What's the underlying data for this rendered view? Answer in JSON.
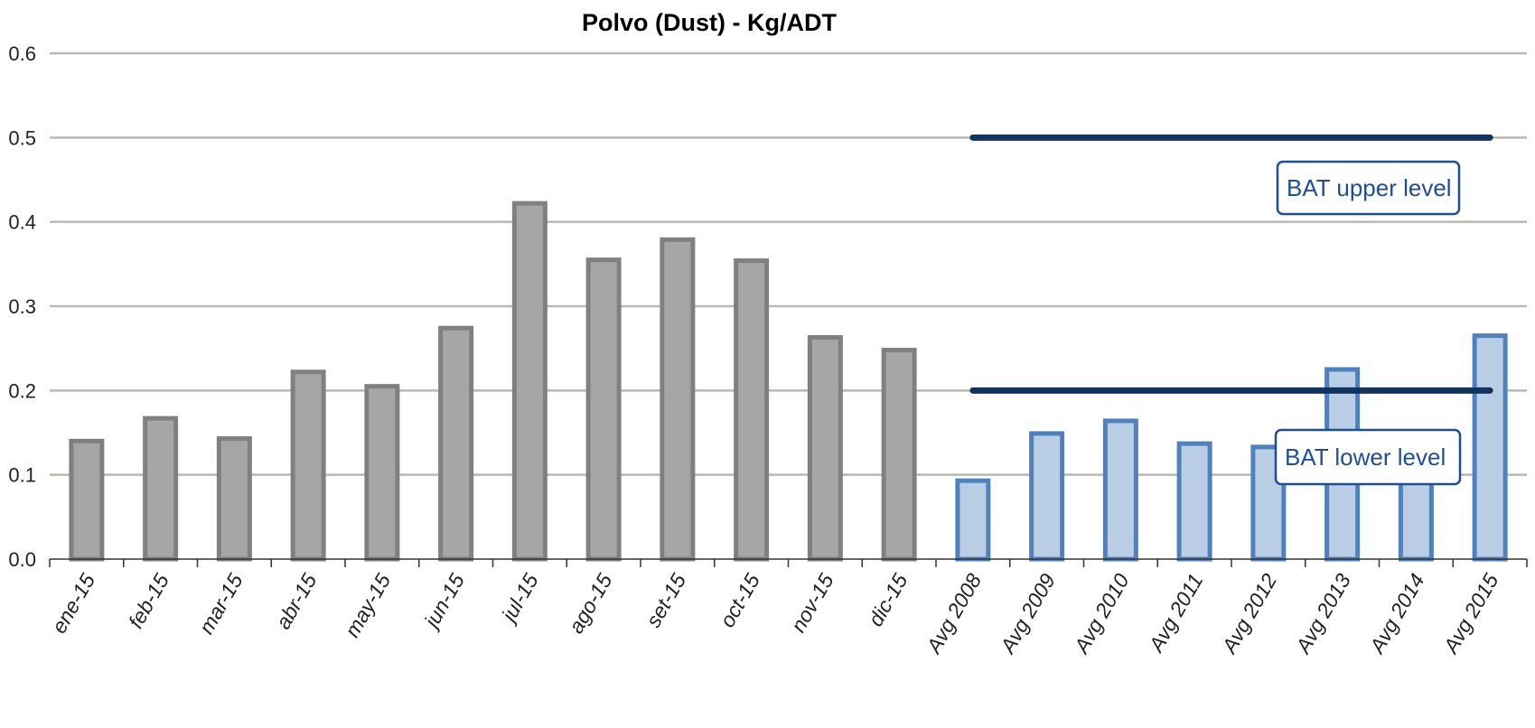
{
  "chart_data": {
    "type": "bar",
    "title": "Polvo (Dust) - Kg/ADT",
    "xlabel": "",
    "ylabel": "",
    "ylim": [
      0,
      0.6
    ],
    "yticks": [
      "0.0",
      "0.1",
      "0.2",
      "0.3",
      "0.4",
      "0.5",
      "0.6"
    ],
    "grid": true,
    "categories": [
      "ene-15",
      "feb-15",
      "mar-15",
      "abr-15",
      "may-15",
      "jun-15",
      "jul-15",
      "ago-15",
      "set-15",
      "oct-15",
      "nov-15",
      "dic-15",
      "Avg 2008",
      "Avg 2009",
      "Avg 2010",
      "Avg 2011",
      "Avg 2012",
      "Avg 2013",
      "Avg 2014",
      "Avg 2015"
    ],
    "values": [
      0.14,
      0.167,
      0.143,
      0.222,
      0.205,
      0.274,
      0.422,
      0.355,
      0.379,
      0.354,
      0.263,
      0.248,
      0.093,
      0.149,
      0.164,
      0.137,
      0.133,
      0.225,
      0.142,
      0.265
    ],
    "groups": [
      {
        "categories_from": 0,
        "categories_to": 11,
        "fill": "#a6a6a6",
        "stroke": "#808080"
      },
      {
        "categories_from": 12,
        "categories_to": 19,
        "fill": "#b9cde5",
        "stroke": "#4f81bd"
      }
    ],
    "reference_lines": [
      {
        "label": "BAT upper level",
        "y": 0.5,
        "x_from": "Avg 2008",
        "x_to": "Avg 2015",
        "color": "#0f3460"
      },
      {
        "label": "BAT lower level",
        "y": 0.2,
        "x_from": "Avg 2008",
        "x_to": "Avg 2015",
        "color": "#0f3460"
      }
    ],
    "label_box_color": "#1f4e96"
  }
}
